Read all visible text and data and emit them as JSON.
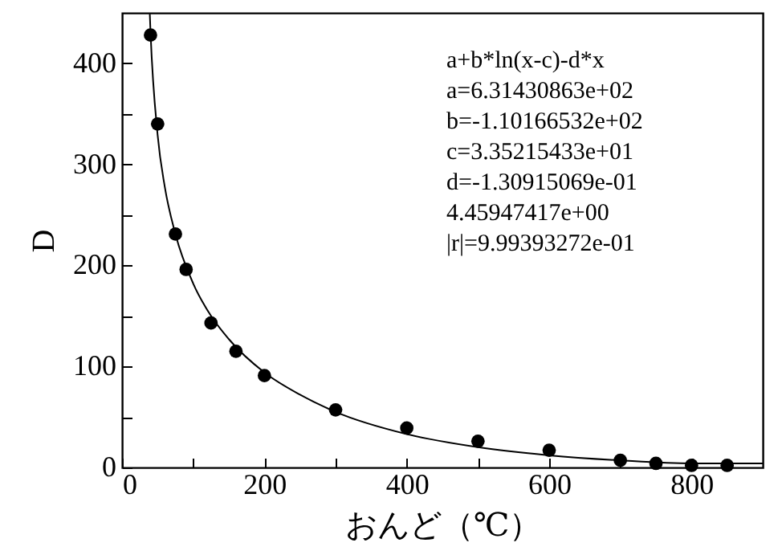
{
  "chart_data": {
    "type": "scatter",
    "xlabel": "おんど（℃）",
    "ylabel": "D",
    "xlim": [
      0,
      900
    ],
    "ylim": [
      0,
      450
    ],
    "xticks": [
      0,
      {
        "value": 100,
        "label": null
      },
      200,
      {
        "value": 300,
        "label": null
      },
      400,
      {
        "value": 500,
        "label": null
      },
      600,
      {
        "value": 700,
        "label": null
      },
      800
    ],
    "yticks": [
      0,
      {
        "value": 50,
        "label": null
      },
      100,
      {
        "value": 150,
        "label": null
      },
      200,
      {
        "value": 250,
        "label": null
      },
      300,
      {
        "value": 350,
        "label": null
      },
      400
    ],
    "grid": false,
    "series": [
      {
        "marker": "circle",
        "color": "#000000",
        "x": [
          40,
          50,
          75,
          90,
          125,
          160,
          200,
          300,
          400,
          500,
          600,
          700,
          750,
          800,
          850
        ],
        "values": [
          428,
          340,
          231,
          196,
          143,
          115,
          91,
          57,
          39,
          26,
          17,
          7,
          4,
          2,
          2
        ]
      },
      {
        "type": "line",
        "color": "#000000",
        "x": [
          39,
          40,
          50,
          60,
          75,
          100,
          125,
          150,
          200,
          250,
          300,
          400,
          500,
          600,
          700,
          800,
          900
        ],
        "values": [
          449,
          431,
          329,
          278,
          231,
          182,
          150,
          127,
          94,
          72,
          55,
          33,
          20,
          12,
          7,
          4,
          4
        ]
      }
    ],
    "annotations": [
      "a+b*ln(x-c)-d*x",
      "a=6.31430863e+02",
      "b=-1.10166532e+02",
      "c=3.35215433e+01",
      "d=-1.30915069e-01",
      "4.45947417e+00",
      "|r|=9.99393272e-01"
    ]
  }
}
